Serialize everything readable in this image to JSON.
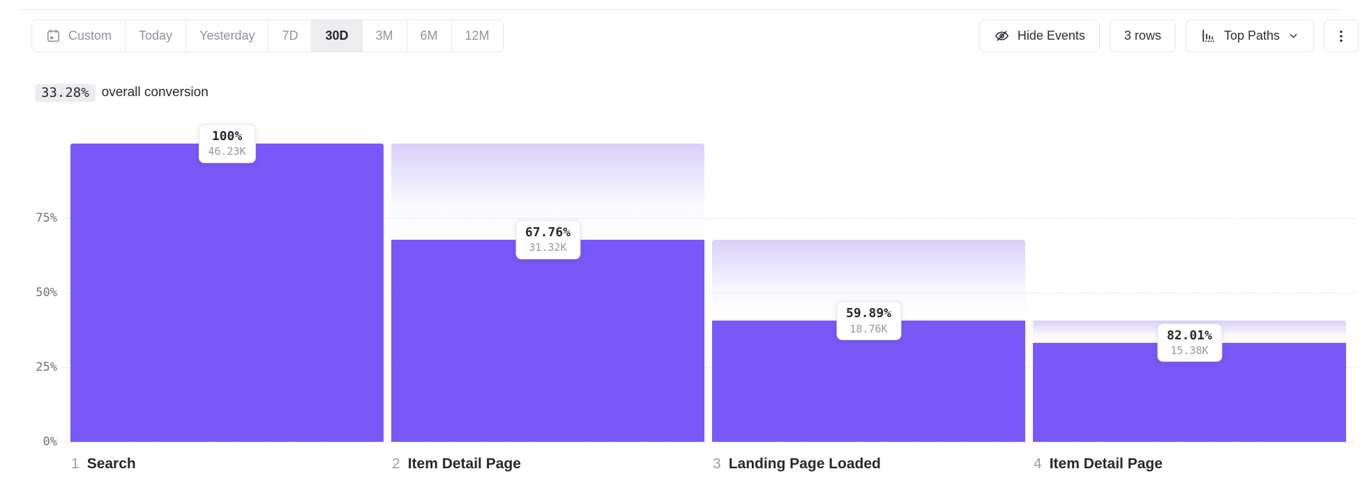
{
  "toolbar": {
    "date_picker": {
      "items": [
        {
          "label": "Custom",
          "icon": "calendar",
          "selected": false
        },
        {
          "label": "Today",
          "selected": false
        },
        {
          "label": "Yesterday",
          "selected": false
        },
        {
          "label": "7D",
          "selected": false
        },
        {
          "label": "30D",
          "selected": true
        },
        {
          "label": "3M",
          "selected": false
        },
        {
          "label": "6M",
          "selected": false
        },
        {
          "label": "12M",
          "selected": false
        }
      ]
    },
    "hide_events_label": "Hide Events",
    "rows_label": "3 rows",
    "top_paths_label": "Top Paths"
  },
  "summary": {
    "value": "33.28%",
    "label": "overall conversion"
  },
  "chart_data": {
    "type": "bar",
    "subtype": "funnel",
    "title": "33.28% overall conversion",
    "categories": [
      "Search",
      "Item Detail Page",
      "Landing Page Loaded",
      "Item Detail Page"
    ],
    "steps": [
      {
        "index": "1",
        "name": "Search",
        "conversion_pct": "100%",
        "count": "46.23K",
        "height_pct_of_total": 100,
        "prev_height_pct_of_total": 100
      },
      {
        "index": "2",
        "name": "Item Detail Page",
        "conversion_pct": "67.76%",
        "count": "31.32K",
        "height_pct_of_total": 67.75,
        "prev_height_pct_of_total": 100
      },
      {
        "index": "3",
        "name": "Landing Page Loaded",
        "conversion_pct": "59.89%",
        "count": "18.76K",
        "height_pct_of_total": 40.58,
        "prev_height_pct_of_total": 67.75
      },
      {
        "index": "4",
        "name": "Item Detail Page",
        "conversion_pct": "82.01%",
        "count": "15.38K",
        "height_pct_of_total": 33.28,
        "prev_height_pct_of_total": 40.58
      }
    ],
    "y_ticks": [
      {
        "label": "75%",
        "value": 75
      },
      {
        "label": "50%",
        "value": 50
      },
      {
        "label": "25%",
        "value": 25
      },
      {
        "label": "0%",
        "value": 0
      }
    ],
    "ylim": [
      0,
      100
    ],
    "grid": "dashed horizontal",
    "legend": "none",
    "colors": {
      "bar": "#7958f8",
      "ghost_gradient_top": "#d9d0fa"
    }
  }
}
